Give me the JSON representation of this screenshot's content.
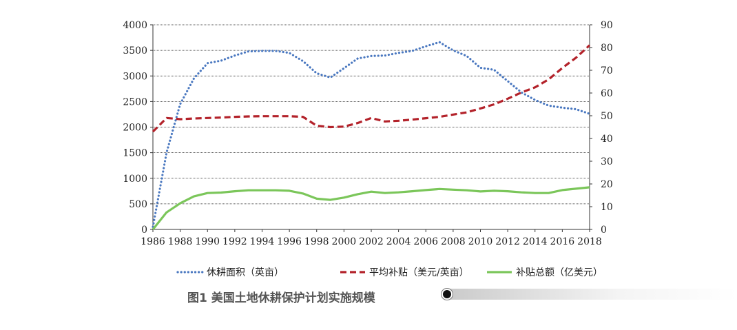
{
  "chart_data": {
    "type": "line",
    "title": "",
    "xlabel": "",
    "ylabel": "",
    "xlim": [
      1986,
      2018
    ],
    "ylim_left": [
      0,
      4000
    ],
    "ylim_right": [
      0,
      90
    ],
    "x_ticks": [
      "1986",
      "1988",
      "1990",
      "1992",
      "1994",
      "1996",
      "1998",
      "2000",
      "2002",
      "2004",
      "2006",
      "2008",
      "2010",
      "2012",
      "2014",
      "2016",
      "2018"
    ],
    "y_left_ticks": [
      "0",
      "500",
      "1000",
      "1500",
      "2000",
      "2500",
      "3000",
      "3500",
      "4000"
    ],
    "y_right_ticks": [
      "0",
      "10",
      "20",
      "30",
      "40",
      "50",
      "60",
      "70",
      "80",
      "90"
    ],
    "grid": "horizontal",
    "legend_position": "bottom",
    "x": [
      1986,
      1987,
      1988,
      1989,
      1990,
      1991,
      1992,
      1993,
      1994,
      1995,
      1996,
      1997,
      1998,
      1999,
      2000,
      2001,
      2002,
      2003,
      2004,
      2005,
      2006,
      2007,
      2008,
      2009,
      2010,
      2011,
      2012,
      2013,
      2014,
      2015,
      2016,
      2017,
      2018
    ],
    "series": [
      {
        "name": "休耕面积（英亩）",
        "axis": "left",
        "style": "dotted",
        "color": "#4a78c0",
        "values": [
          50,
          1500,
          2450,
          2950,
          3250,
          3300,
          3400,
          3480,
          3490,
          3490,
          3450,
          3290,
          3050,
          2970,
          3150,
          3340,
          3390,
          3400,
          3450,
          3490,
          3580,
          3660,
          3500,
          3390,
          3160,
          3120,
          2900,
          2680,
          2530,
          2420,
          2380,
          2350,
          2260
        ]
      },
      {
        "name": "平均补贴（美元/英亩）",
        "axis": "right",
        "style": "dashed",
        "color": "#b3222a",
        "values": [
          43,
          49,
          48.5,
          48.8,
          49,
          49.2,
          49.5,
          49.7,
          49.8,
          49.8,
          49.8,
          49.5,
          45.6,
          45,
          45.2,
          46.8,
          49,
          47.5,
          47.8,
          48.3,
          48.9,
          49.5,
          50.5,
          51.5,
          53.2,
          55,
          57.5,
          60.2,
          62.5,
          66,
          71,
          75.5,
          81
        ]
      },
      {
        "name": "补贴总额（亿美元）",
        "axis": "right",
        "style": "solid",
        "color": "#7bc65a",
        "values": [
          0,
          7.5,
          11.5,
          14.5,
          16,
          16.2,
          16.8,
          17.2,
          17.2,
          17.2,
          17,
          15.8,
          13.5,
          13,
          14,
          15.5,
          16.6,
          16,
          16.3,
          16.8,
          17.3,
          17.8,
          17.5,
          17.2,
          16.7,
          17,
          16.8,
          16.3,
          16,
          16,
          17.3,
          17.9,
          18.5
        ]
      }
    ]
  },
  "caption": "图1 美国土地休耕保护计划实施规模"
}
